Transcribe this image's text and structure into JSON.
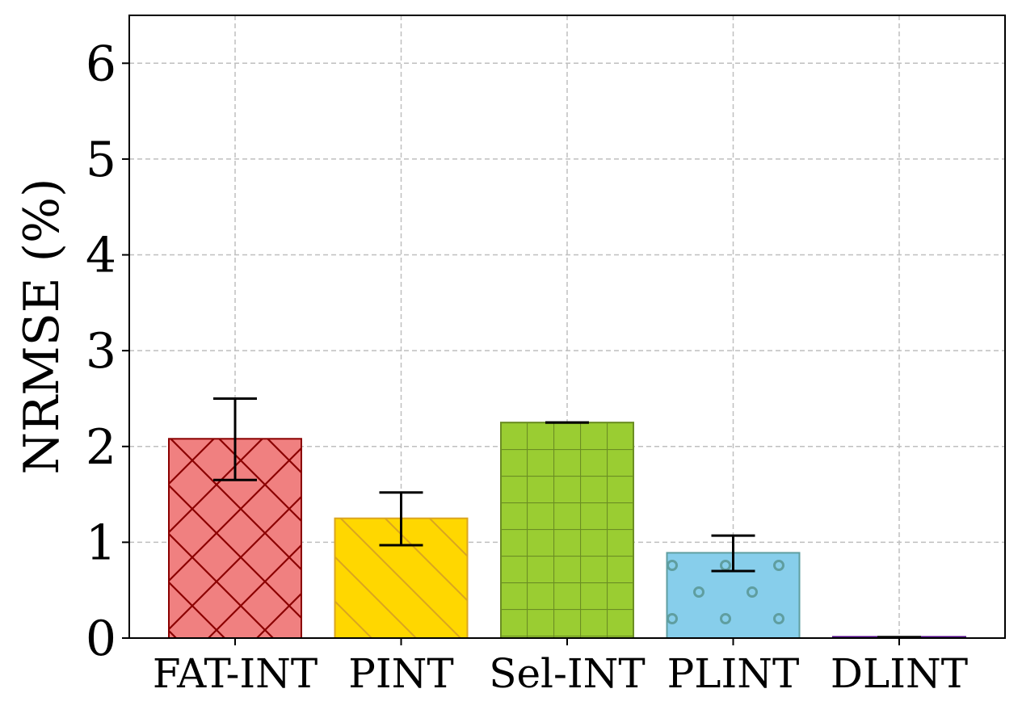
{
  "chart_data": {
    "type": "bar",
    "categories": [
      "FAT-INT",
      "PINT",
      "Sel-INT",
      "PLINT",
      "DLINT"
    ],
    "values": [
      2.08,
      1.25,
      2.25,
      0.89,
      0.01
    ],
    "errors": [
      [
        1.65,
        2.5
      ],
      [
        0.97,
        1.52
      ],
      [
        2.25,
        2.25
      ],
      [
        0.7,
        1.07
      ],
      [
        0.01,
        0.01
      ]
    ],
    "ylabel": "NRMSE (%)",
    "xlabel": "",
    "ylim": [
      0,
      6.5
    ],
    "yticks": [
      "0",
      "1",
      "2",
      "3",
      "4",
      "5",
      "6"
    ],
    "grid": true,
    "colors": [
      "#f08080",
      "#ffd700",
      "#9acd32",
      "#87ceeb",
      "#9370db"
    ],
    "edge_colors": [
      "#8b0000",
      "#daa520",
      "#6b8e23",
      "#5f9ea0",
      "#4b0082"
    ],
    "hatches": [
      "crosshatch",
      "diagonal",
      "grid",
      "dots",
      "none"
    ]
  }
}
